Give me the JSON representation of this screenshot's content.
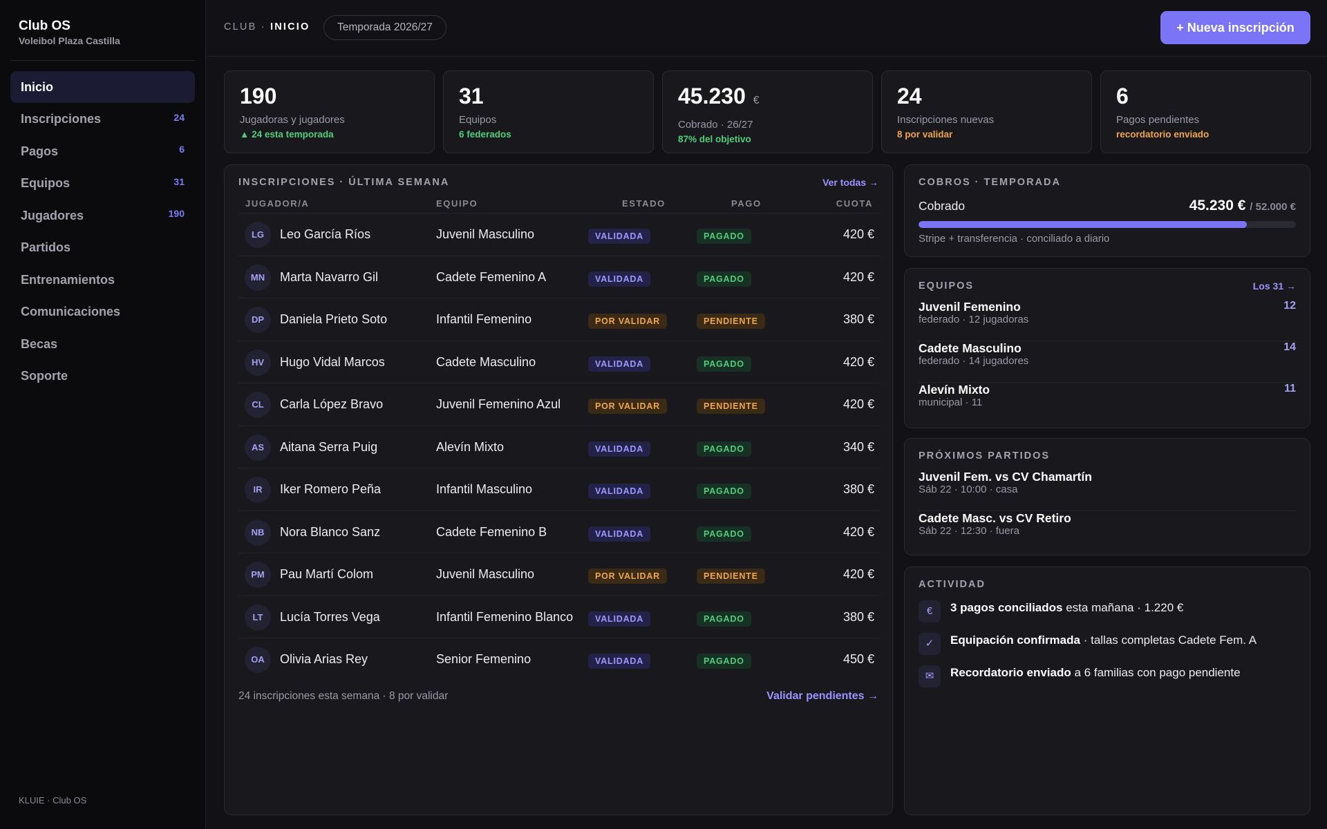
{
  "brand": {
    "title": "Club OS",
    "subtitle": "Voleibol Plaza Castilla"
  },
  "nav": [
    {
      "label": "Inicio",
      "count": "",
      "active": true
    },
    {
      "label": "Inscripciones",
      "count": "24"
    },
    {
      "label": "Pagos",
      "count": "6"
    },
    {
      "label": "Equipos",
      "count": "31"
    },
    {
      "label": "Jugadores",
      "count": "190"
    },
    {
      "label": "Partidos",
      "count": ""
    },
    {
      "label": "Entrenamientos",
      "count": ""
    },
    {
      "label": "Comunicaciones",
      "count": ""
    },
    {
      "label": "Becas",
      "count": ""
    },
    {
      "label": "Soporte",
      "count": ""
    }
  ],
  "footer": "KLUIE · Club OS",
  "topbar": {
    "crumb_root": "CLUB",
    "crumb_sep": " · ",
    "crumb_current": "INICIO",
    "season": "Temporada 2026/27",
    "new_button": "+ Nueva inscripción"
  },
  "stats": [
    {
      "value": "190",
      "unit": "",
      "label": "Jugadoras y jugadores",
      "note": "▲ 24 esta temporada",
      "tone": "green"
    },
    {
      "value": "31",
      "unit": "",
      "label": "Equipos",
      "note": "6 federados",
      "tone": "green"
    },
    {
      "value": "45.230",
      "unit": "€",
      "label": "Cobrado · 26/27",
      "note": "87% del objetivo",
      "tone": "green"
    },
    {
      "value": "24",
      "unit": "",
      "label": "Inscripciones nuevas",
      "note": "8 por validar",
      "tone": "orange"
    },
    {
      "value": "6",
      "unit": "",
      "label": "Pagos pendientes",
      "note": "recordatorio enviado",
      "tone": "orange"
    }
  ],
  "inscripciones": {
    "title": "INSCRIPCIONES · ÚLTIMA SEMANA",
    "see_all": "Ver todas →",
    "columns": {
      "jugador": "JUGADOR/A",
      "equipo": "EQUIPO",
      "estado": "ESTADO",
      "pago": "PAGO",
      "cuota": "CUOTA"
    },
    "rows": [
      {
        "initials": "LG",
        "name": "Leo García Ríos",
        "team": "Juvenil Masculino",
        "estado": "VALIDADA",
        "pago": "PAGADO",
        "cuota": "420 €"
      },
      {
        "initials": "MN",
        "name": "Marta Navarro Gil",
        "team": "Cadete Femenino A",
        "estado": "VALIDADA",
        "pago": "PAGADO",
        "cuota": "420 €"
      },
      {
        "initials": "DP",
        "name": "Daniela Prieto Soto",
        "team": "Infantil Femenino",
        "estado": "POR VALIDAR",
        "pago": "PENDIENTE",
        "cuota": "380 €"
      },
      {
        "initials": "HV",
        "name": "Hugo Vidal Marcos",
        "team": "Cadete Masculino",
        "estado": "VALIDADA",
        "pago": "PAGADO",
        "cuota": "420 €"
      },
      {
        "initials": "CL",
        "name": "Carla López Bravo",
        "team": "Juvenil Femenino Azul",
        "estado": "POR VALIDAR",
        "pago": "PENDIENTE",
        "cuota": "420 €"
      },
      {
        "initials": "AS",
        "name": "Aitana Serra Puig",
        "team": "Alevín Mixto",
        "estado": "VALIDADA",
        "pago": "PAGADO",
        "cuota": "340 €"
      },
      {
        "initials": "IR",
        "name": "Iker Romero Peña",
        "team": "Infantil Masculino",
        "estado": "VALIDADA",
        "pago": "PAGADO",
        "cuota": "380 €"
      },
      {
        "initials": "NB",
        "name": "Nora Blanco Sanz",
        "team": "Cadete Femenino B",
        "estado": "VALIDADA",
        "pago": "PAGADO",
        "cuota": "420 €"
      },
      {
        "initials": "PM",
        "name": "Pau Martí Colom",
        "team": "Juvenil Masculino",
        "estado": "POR VALIDAR",
        "pago": "PENDIENTE",
        "cuota": "420 €"
      },
      {
        "initials": "LT",
        "name": "Lucía Torres Vega",
        "team": "Infantil Femenino Blanco",
        "estado": "VALIDADA",
        "pago": "PAGADO",
        "cuota": "380 €"
      },
      {
        "initials": "OA",
        "name": "Olivia Arias Rey",
        "team": "Senior Femenino",
        "estado": "VALIDADA",
        "pago": "PAGADO",
        "cuota": "450 €"
      }
    ],
    "footer_text": "24 inscripciones esta semana · 8 por validar",
    "footer_link": "Validar pendientes →"
  },
  "cobros": {
    "title": "COBROS · TEMPORADA",
    "label": "Cobrado",
    "amount": "45.230 €",
    "target": "/ 52.000 €",
    "progress": 0.87,
    "note": "Stripe + transferencia · conciliado a diario"
  },
  "equipos": {
    "title": "EQUIPOS",
    "link": "Los 31 →",
    "items": [
      {
        "name": "Juvenil Femenino",
        "sub": "federado · 12 jugadoras",
        "count": "12"
      },
      {
        "name": "Cadete Masculino",
        "sub": "federado · 14 jugadores",
        "count": "14"
      },
      {
        "name": "Alevín Mixto",
        "sub": "municipal · 11",
        "count": "11"
      }
    ]
  },
  "partidos": {
    "title": "PRÓXIMOS PARTIDOS",
    "items": [
      {
        "name": "Juvenil Fem. vs CV Chamartín",
        "sub": "Sáb 22 · 10:00 · casa"
      },
      {
        "name": "Cadete Masc. vs CV Retiro",
        "sub": "Sáb 22 · 12:30 · fuera"
      }
    ]
  },
  "actividad": {
    "title": "ACTIVIDAD",
    "items": [
      {
        "icon": "euro-icon",
        "glyph": "€",
        "strong": "3 pagos conciliados",
        "rest": " esta mañana · 1.220 €"
      },
      {
        "icon": "check-icon",
        "glyph": "✓",
        "strong": "Equipación confirmada",
        "rest": " · tallas completas Cadete Fem. A"
      },
      {
        "icon": "mail-icon",
        "glyph": "✉",
        "strong": "Recordatorio enviado",
        "rest": " a 6 familias con pago pendiente"
      }
    ]
  }
}
